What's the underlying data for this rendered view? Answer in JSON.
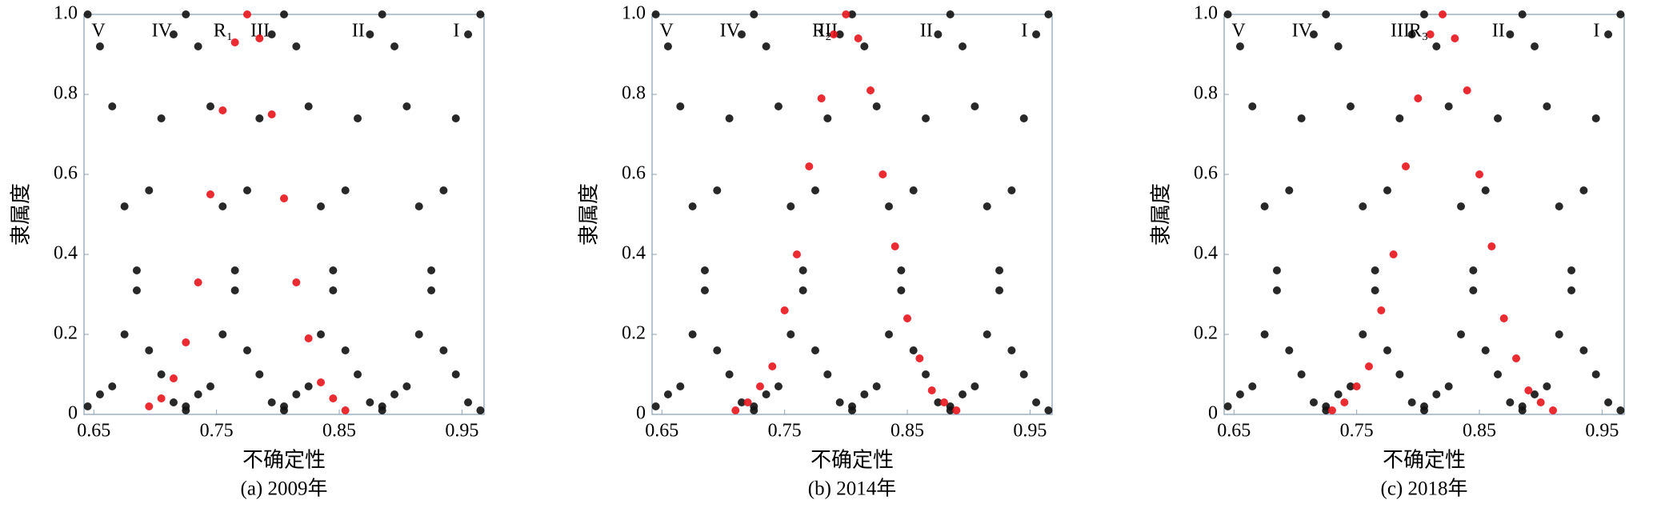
{
  "chart_data": [
    {
      "type": "scatter",
      "caption": "(a) 2009年",
      "x_label": "不确定性",
      "y_label": "隶属度",
      "xlim": [
        0.642,
        0.968
      ],
      "ylim": [
        0,
        1
      ],
      "xticks": [
        0.65,
        0.75,
        0.85,
        0.95
      ],
      "yticks": [
        0,
        0.2,
        0.4,
        0.6,
        0.8,
        {
          "value": 1,
          "label": "1.0"
        }
      ],
      "series": [
        {
          "name": "V",
          "color": "#111111",
          "x": [
            0.645,
            0.655,
            0.665,
            0.675,
            0.685,
            0.695,
            0.705,
            0.715,
            0.725
          ],
          "values": [
            1.0,
            0.92,
            0.77,
            0.52,
            0.36,
            0.16,
            0.1,
            0.03,
            0.01
          ]
        },
        {
          "name": "IV",
          "color": "#111111",
          "x": [
            0.645,
            0.655,
            0.665,
            0.675,
            0.685,
            0.695,
            0.705,
            0.715,
            0.725,
            0.735,
            0.745,
            0.755,
            0.765,
            0.775,
            0.785,
            0.795,
            0.805
          ],
          "values": [
            0.02,
            0.05,
            0.07,
            0.2,
            0.31,
            0.56,
            0.74,
            0.95,
            1.0,
            0.92,
            0.77,
            0.52,
            0.36,
            0.16,
            0.1,
            0.03,
            0.01
          ]
        },
        {
          "name": "III",
          "color": "#111111",
          "x": [
            0.725,
            0.735,
            0.745,
            0.755,
            0.765,
            0.775,
            0.785,
            0.795,
            0.805,
            0.815,
            0.825,
            0.835,
            0.845,
            0.855,
            0.865,
            0.875,
            0.885
          ],
          "values": [
            0.02,
            0.05,
            0.07,
            0.2,
            0.31,
            0.56,
            0.74,
            0.95,
            1.0,
            0.92,
            0.77,
            0.52,
            0.36,
            0.16,
            0.1,
            0.03,
            0.01
          ]
        },
        {
          "name": "II",
          "color": "#111111",
          "x": [
            0.805,
            0.815,
            0.825,
            0.835,
            0.845,
            0.855,
            0.865,
            0.875,
            0.885,
            0.895,
            0.905,
            0.915,
            0.925,
            0.935,
            0.945,
            0.955,
            0.965
          ],
          "values": [
            0.02,
            0.05,
            0.07,
            0.2,
            0.31,
            0.56,
            0.74,
            0.95,
            1.0,
            0.92,
            0.77,
            0.52,
            0.36,
            0.16,
            0.1,
            0.03,
            0.01
          ]
        },
        {
          "name": "I",
          "color": "#111111",
          "x": [
            0.885,
            0.895,
            0.905,
            0.915,
            0.925,
            0.935,
            0.945,
            0.955,
            0.965
          ],
          "values": [
            0.02,
            0.05,
            0.07,
            0.2,
            0.31,
            0.56,
            0.74,
            0.95,
            1.0
          ]
        },
        {
          "name": "R₁",
          "color": "#e8141c",
          "x": [
            0.695,
            0.705,
            0.715,
            0.725,
            0.735,
            0.745,
            0.755,
            0.765,
            0.775,
            0.785,
            0.795,
            0.805,
            0.815,
            0.825,
            0.835,
            0.845,
            0.855
          ],
          "values": [
            0.02,
            0.04,
            0.09,
            0.18,
            0.33,
            0.55,
            0.76,
            0.93,
            1.0,
            0.94,
            0.75,
            0.54,
            0.33,
            0.19,
            0.08,
            0.04,
            0.01
          ]
        }
      ]
    },
    {
      "type": "scatter",
      "caption": "(b) 2014年",
      "x_label": "不确定性",
      "y_label": "隶属度",
      "xlim": [
        0.642,
        0.968
      ],
      "ylim": [
        0,
        1
      ],
      "xticks": [
        0.65,
        0.75,
        0.85,
        0.95
      ],
      "yticks": [
        0,
        0.2,
        0.4,
        0.6,
        0.8,
        {
          "value": 1,
          "label": "1.0"
        }
      ],
      "series": [
        {
          "name": "V",
          "color": "#111111",
          "x": [
            0.645,
            0.655,
            0.665,
            0.675,
            0.685,
            0.695,
            0.705,
            0.715,
            0.725
          ],
          "values": [
            1.0,
            0.92,
            0.77,
            0.52,
            0.36,
            0.16,
            0.1,
            0.03,
            0.01
          ]
        },
        {
          "name": "IV",
          "color": "#111111",
          "x": [
            0.645,
            0.655,
            0.665,
            0.675,
            0.685,
            0.695,
            0.705,
            0.715,
            0.725,
            0.735,
            0.745,
            0.755,
            0.765,
            0.775,
            0.785,
            0.795,
            0.805
          ],
          "values": [
            0.02,
            0.05,
            0.07,
            0.2,
            0.31,
            0.56,
            0.74,
            0.95,
            1.0,
            0.92,
            0.77,
            0.52,
            0.36,
            0.16,
            0.1,
            0.03,
            0.01
          ]
        },
        {
          "name": "III",
          "color": "#111111",
          "x": [
            0.725,
            0.735,
            0.745,
            0.755,
            0.765,
            0.775,
            0.785,
            0.795,
            0.805,
            0.815,
            0.825,
            0.835,
            0.845,
            0.855,
            0.865,
            0.875,
            0.885
          ],
          "values": [
            0.02,
            0.05,
            0.07,
            0.2,
            0.31,
            0.56,
            0.74,
            0.95,
            1.0,
            0.92,
            0.77,
            0.52,
            0.36,
            0.16,
            0.1,
            0.03,
            0.01
          ]
        },
        {
          "name": "II",
          "color": "#111111",
          "x": [
            0.805,
            0.815,
            0.825,
            0.835,
            0.845,
            0.855,
            0.865,
            0.875,
            0.885,
            0.895,
            0.905,
            0.915,
            0.925,
            0.935,
            0.945,
            0.955,
            0.965
          ],
          "values": [
            0.02,
            0.05,
            0.07,
            0.2,
            0.31,
            0.56,
            0.74,
            0.95,
            1.0,
            0.92,
            0.77,
            0.52,
            0.36,
            0.16,
            0.1,
            0.03,
            0.01
          ]
        },
        {
          "name": "I",
          "color": "#111111",
          "x": [
            0.885,
            0.895,
            0.905,
            0.915,
            0.925,
            0.935,
            0.945,
            0.955,
            0.965
          ],
          "values": [
            0.02,
            0.05,
            0.07,
            0.2,
            0.31,
            0.56,
            0.74,
            0.95,
            1.0
          ]
        },
        {
          "name": "R₂",
          "color": "#e8141c",
          "x": [
            0.71,
            0.72,
            0.73,
            0.74,
            0.75,
            0.76,
            0.77,
            0.78,
            0.79,
            0.8,
            0.81,
            0.82,
            0.83,
            0.84,
            0.85,
            0.86,
            0.87,
            0.88,
            0.89
          ],
          "values": [
            0.01,
            0.03,
            0.07,
            0.12,
            0.26,
            0.4,
            0.62,
            0.79,
            0.95,
            1.0,
            0.94,
            0.81,
            0.6,
            0.42,
            0.24,
            0.14,
            0.06,
            0.03,
            0.01
          ]
        }
      ]
    },
    {
      "type": "scatter",
      "caption": "(c) 2018年",
      "x_label": "不确定性",
      "y_label": "隶属度",
      "xlim": [
        0.642,
        0.968
      ],
      "ylim": [
        0,
        1
      ],
      "xticks": [
        0.65,
        0.75,
        0.85,
        0.95
      ],
      "yticks": [
        0,
        0.2,
        0.4,
        0.6,
        0.8,
        {
          "value": 1,
          "label": "1.0"
        }
      ],
      "series": [
        {
          "name": "V",
          "color": "#111111",
          "x": [
            0.645,
            0.655,
            0.665,
            0.675,
            0.685,
            0.695,
            0.705,
            0.715,
            0.725
          ],
          "values": [
            1.0,
            0.92,
            0.77,
            0.52,
            0.36,
            0.16,
            0.1,
            0.03,
            0.01
          ]
        },
        {
          "name": "IV",
          "color": "#111111",
          "x": [
            0.645,
            0.655,
            0.665,
            0.675,
            0.685,
            0.695,
            0.705,
            0.715,
            0.725,
            0.735,
            0.745,
            0.755,
            0.765,
            0.775,
            0.785,
            0.795,
            0.805
          ],
          "values": [
            0.02,
            0.05,
            0.07,
            0.2,
            0.31,
            0.56,
            0.74,
            0.95,
            1.0,
            0.92,
            0.77,
            0.52,
            0.36,
            0.16,
            0.1,
            0.03,
            0.01
          ]
        },
        {
          "name": "III",
          "color": "#111111",
          "x": [
            0.725,
            0.735,
            0.745,
            0.755,
            0.765,
            0.775,
            0.785,
            0.795,
            0.805,
            0.815,
            0.825,
            0.835,
            0.845,
            0.855,
            0.865,
            0.875,
            0.885
          ],
          "values": [
            0.02,
            0.05,
            0.07,
            0.2,
            0.31,
            0.56,
            0.74,
            0.95,
            1.0,
            0.92,
            0.77,
            0.52,
            0.36,
            0.16,
            0.1,
            0.03,
            0.01
          ]
        },
        {
          "name": "II",
          "color": "#111111",
          "x": [
            0.805,
            0.815,
            0.825,
            0.835,
            0.845,
            0.855,
            0.865,
            0.875,
            0.885,
            0.895,
            0.905,
            0.915,
            0.925,
            0.935,
            0.945,
            0.955,
            0.965
          ],
          "values": [
            0.02,
            0.05,
            0.07,
            0.2,
            0.31,
            0.56,
            0.74,
            0.95,
            1.0,
            0.92,
            0.77,
            0.52,
            0.36,
            0.16,
            0.1,
            0.03,
            0.01
          ]
        },
        {
          "name": "I",
          "color": "#111111",
          "x": [
            0.885,
            0.895,
            0.905,
            0.915,
            0.925,
            0.935,
            0.945,
            0.955,
            0.965
          ],
          "values": [
            0.02,
            0.05,
            0.07,
            0.2,
            0.31,
            0.56,
            0.74,
            0.95,
            1.0
          ]
        },
        {
          "name": "R₃",
          "color": "#e8141c",
          "x": [
            0.73,
            0.74,
            0.75,
            0.76,
            0.77,
            0.78,
            0.79,
            0.8,
            0.81,
            0.82,
            0.83,
            0.84,
            0.85,
            0.86,
            0.87,
            0.88,
            0.89,
            0.9,
            0.91
          ],
          "values": [
            0.01,
            0.03,
            0.07,
            0.12,
            0.26,
            0.4,
            0.62,
            0.79,
            0.95,
            1.0,
            0.94,
            0.81,
            0.6,
            0.42,
            0.24,
            0.14,
            0.06,
            0.03,
            0.01
          ]
        }
      ]
    }
  ]
}
